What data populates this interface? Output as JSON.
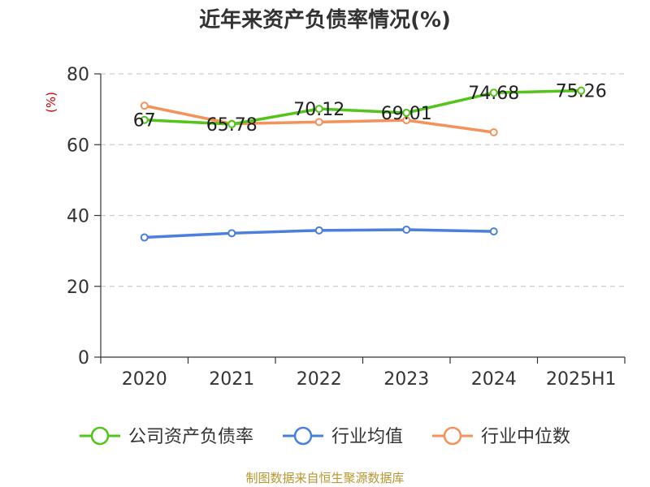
{
  "chart_data": {
    "type": "line",
    "title": "近年来资产负债率情况(%)",
    "y_unit": "(%)",
    "categories": [
      "2020",
      "2021",
      "2022",
      "2023",
      "2024",
      "2025H1"
    ],
    "ylim": [
      0,
      80
    ],
    "yticks": [
      0,
      20,
      40,
      60,
      80
    ],
    "grid": true,
    "legend_position": "bottom",
    "series": [
      {
        "name": "公司资产负债率",
        "color": "#52c41a",
        "values": [
          67,
          65.78,
          70.12,
          69.01,
          74.68,
          75.26
        ],
        "labels": [
          "67",
          "65.78",
          "70.12",
          "69.01",
          "74.68",
          "75.26"
        ]
      },
      {
        "name": "行业均值",
        "color": "#4a7fdc",
        "values": [
          33.8,
          35.0,
          35.8,
          36.0,
          35.5,
          null
        ]
      },
      {
        "name": "行业中位数",
        "color": "#f5915a",
        "values": [
          71.0,
          65.9,
          66.4,
          66.9,
          63.5,
          null
        ]
      }
    ]
  },
  "source": "制图数据来自恒生聚源数据库"
}
